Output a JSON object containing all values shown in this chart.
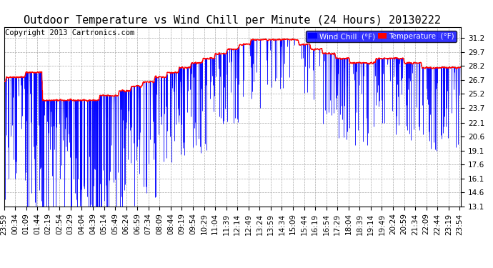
{
  "title": "Outdoor Temperature vs Wind Chill per Minute (24 Hours) 20130222",
  "copyright": "Copyright 2013 Cartronics.com",
  "yticks": [
    13.1,
    14.6,
    16.1,
    17.6,
    19.1,
    20.6,
    22.1,
    23.7,
    25.2,
    26.7,
    28.2,
    29.7,
    31.2
  ],
  "ylim": [
    13.1,
    32.4
  ],
  "temp_color": "#ff0000",
  "wind_chill_color": "#0000ff",
  "bg_color": "#ffffff",
  "grid_color": "#aaaaaa",
  "legend_wind_label": "Wind Chill  (°F)",
  "legend_temp_label": "Temperature  (°F)",
  "title_fontsize": 11,
  "copyright_fontsize": 7.5,
  "tick_fontsize": 7.5,
  "n_minutes": 1440,
  "xtick_interval": 35,
  "seed": 42
}
